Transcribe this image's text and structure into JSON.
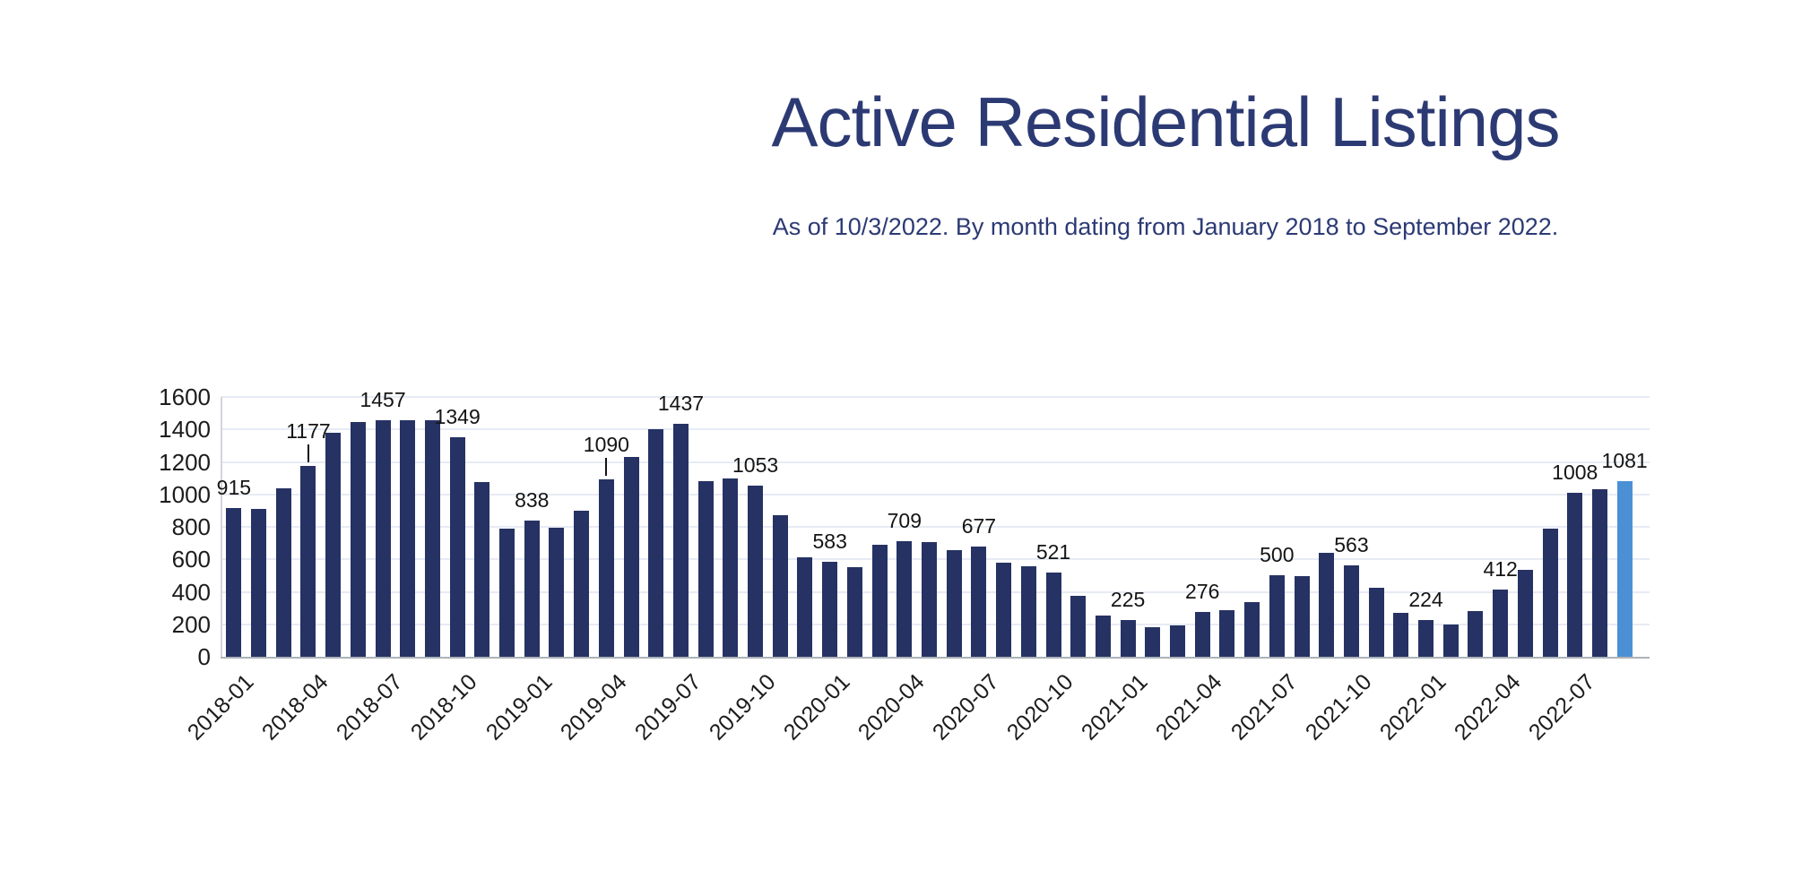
{
  "title": "Active Residential Listings",
  "subtitle": "As of 10/3/2022. By month dating from January 2018 to September 2022.",
  "colors": {
    "title_text": "#2c3a74",
    "bar": "#263263",
    "highlight_bar": "#4b90d4",
    "grid": "#e6ebf4",
    "baseline": "#adb2b8",
    "y_axis_line": "#d3d6da",
    "tick_text": "#1c1c1c",
    "data_label_text": "#141414"
  },
  "chart_data": {
    "type": "bar",
    "title": "Active Residential Listings",
    "subtitle": "As of 10/3/2022. By month dating from January 2018 to September 2022.",
    "xlabel": "",
    "ylabel": "",
    "ylim": [
      0,
      1600
    ],
    "yticks": [
      0,
      200,
      400,
      600,
      800,
      1000,
      1200,
      1400,
      1600
    ],
    "grid": true,
    "legend": false,
    "x": [
      "2018-01",
      "2018-02",
      "2018-03",
      "2018-04",
      "2018-05",
      "2018-06",
      "2018-07",
      "2018-08",
      "2018-09",
      "2018-10",
      "2018-11",
      "2018-12",
      "2019-01",
      "2019-02",
      "2019-03",
      "2019-04",
      "2019-05",
      "2019-06",
      "2019-07",
      "2019-08",
      "2019-09",
      "2019-10",
      "2019-11",
      "2019-12",
      "2020-01",
      "2020-02",
      "2020-03",
      "2020-04",
      "2020-05",
      "2020-06",
      "2020-07",
      "2020-08",
      "2020-09",
      "2020-10",
      "2020-11",
      "2020-12",
      "2021-01",
      "2021-02",
      "2021-03",
      "2021-04",
      "2021-05",
      "2021-06",
      "2021-07",
      "2021-08",
      "2021-09",
      "2021-10",
      "2021-11",
      "2021-12",
      "2022-01",
      "2022-02",
      "2022-03",
      "2022-04",
      "2022-05",
      "2022-06",
      "2022-07",
      "2022-08",
      "2022-09"
    ],
    "values": [
      915,
      912,
      1035,
      1177,
      1380,
      1445,
      1457,
      1459,
      1458,
      1349,
      1075,
      790,
      838,
      795,
      900,
      1090,
      1230,
      1400,
      1437,
      1080,
      1100,
      1053,
      870,
      615,
      583,
      550,
      690,
      709,
      705,
      655,
      677,
      580,
      555,
      521,
      375,
      255,
      225,
      180,
      195,
      276,
      285,
      335,
      500,
      495,
      640,
      563,
      425,
      270,
      224,
      200,
      280,
      412,
      535,
      790,
      1008,
      1030,
      1081
    ],
    "highlight_index": 56,
    "value_labels": [
      {
        "index": 0,
        "text": "915"
      },
      {
        "index": 3,
        "text": "1177",
        "leader": true
      },
      {
        "index": 6,
        "text": "1457"
      },
      {
        "index": 9,
        "text": "1349"
      },
      {
        "index": 12,
        "text": "838"
      },
      {
        "index": 15,
        "text": "1090",
        "leader": true
      },
      {
        "index": 18,
        "text": "1437"
      },
      {
        "index": 21,
        "text": "1053"
      },
      {
        "index": 24,
        "text": "583"
      },
      {
        "index": 27,
        "text": "709"
      },
      {
        "index": 30,
        "text": "677"
      },
      {
        "index": 33,
        "text": "521"
      },
      {
        "index": 36,
        "text": "225"
      },
      {
        "index": 39,
        "text": "276"
      },
      {
        "index": 42,
        "text": "500"
      },
      {
        "index": 45,
        "text": "563"
      },
      {
        "index": 48,
        "text": "224"
      },
      {
        "index": 51,
        "text": "412"
      },
      {
        "index": 54,
        "text": "1008"
      },
      {
        "index": 56,
        "text": "1081"
      }
    ],
    "xticks": [
      {
        "index": 0,
        "label": "2018-01"
      },
      {
        "index": 3,
        "label": "2018-04"
      },
      {
        "index": 6,
        "label": "2018-07"
      },
      {
        "index": 9,
        "label": "2018-10"
      },
      {
        "index": 12,
        "label": "2019-01"
      },
      {
        "index": 15,
        "label": "2019-04"
      },
      {
        "index": 18,
        "label": "2019-07"
      },
      {
        "index": 21,
        "label": "2019-10"
      },
      {
        "index": 24,
        "label": "2020-01"
      },
      {
        "index": 27,
        "label": "2020-04"
      },
      {
        "index": 30,
        "label": "2020-07"
      },
      {
        "index": 33,
        "label": "2020-10"
      },
      {
        "index": 36,
        "label": "2021-01"
      },
      {
        "index": 39,
        "label": "2021-04"
      },
      {
        "index": 42,
        "label": "2021-07"
      },
      {
        "index": 45,
        "label": "2021-10"
      },
      {
        "index": 48,
        "label": "2022-01"
      },
      {
        "index": 51,
        "label": "2022-04"
      },
      {
        "index": 54,
        "label": "2022-07"
      }
    ]
  }
}
